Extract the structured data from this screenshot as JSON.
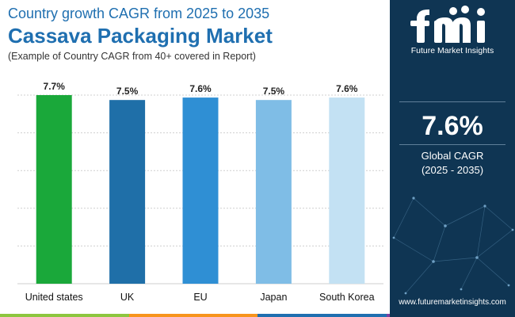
{
  "header": {
    "subtitle": "Country growth CAGR from 2025 to 2035",
    "title": "Cassava Packaging Market",
    "note": "(Example of Country CAGR from 40+ covered in Report)"
  },
  "chart_data": {
    "type": "bar",
    "categories": [
      "United states",
      "UK",
      "EU",
      "Japan",
      "South Korea"
    ],
    "values": [
      7.7,
      7.5,
      7.6,
      7.5,
      7.6
    ],
    "value_labels": [
      "7.7%",
      "7.5%",
      "7.6%",
      "7.5%",
      "7.6%"
    ],
    "bar_colors": [
      "#1aa83a",
      "#1f6fa8",
      "#2f8fd4",
      "#7fbde6",
      "#c3e1f3"
    ],
    "title": "",
    "xlabel": "",
    "ylabel": "",
    "ylim": [
      0,
      7.7
    ],
    "y_tick_labels_visible": false,
    "grid": true,
    "grid_lines": 6
  },
  "sidebar": {
    "logo_text": "Future Market Insights",
    "cagr_value": "7.6%",
    "cagr_label": "Global CAGR",
    "cagr_period": "(2025 - 2035)",
    "website": "www.futuremarketinsights.com"
  },
  "colors": {
    "title": "#1f6fb0",
    "sidebar_bg": "#0f3553",
    "stripe": [
      "#8dc63f",
      "#f7941d",
      "#1f6fb0",
      "#7b3fa0"
    ]
  }
}
